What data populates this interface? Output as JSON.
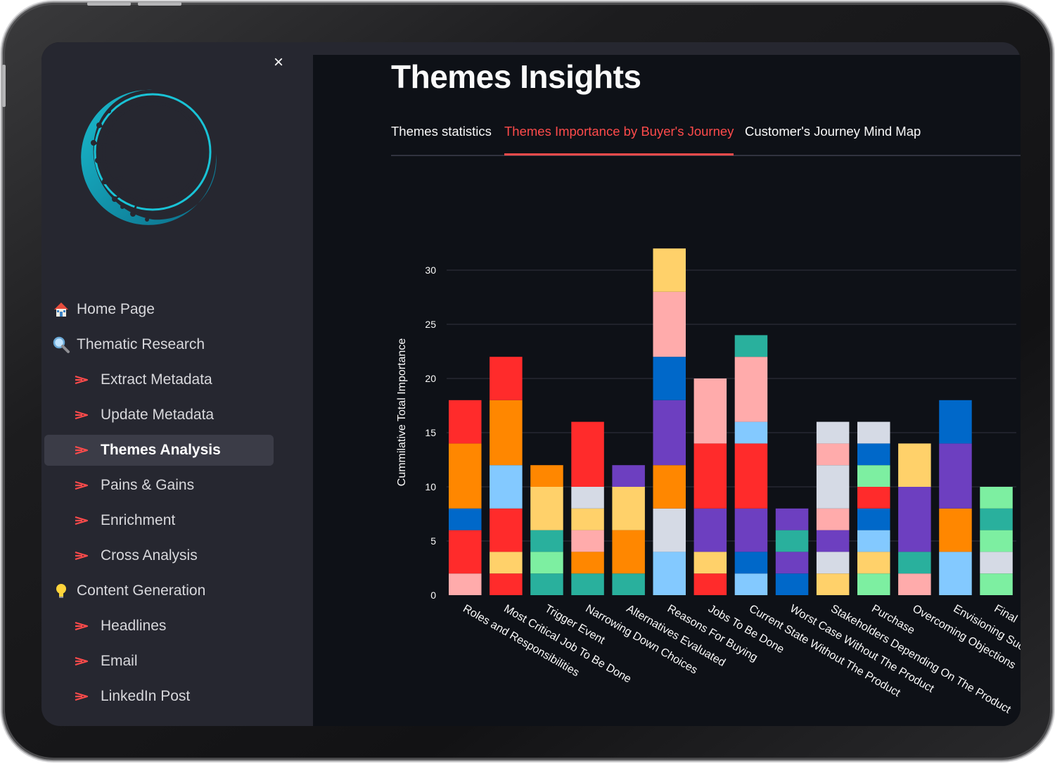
{
  "sidebar": {
    "close_label": "×",
    "items": [
      {
        "label": "Home Page",
        "icon": "house-icon",
        "level": 0,
        "active": false
      },
      {
        "label": "Thematic Research",
        "icon": "magnifier-icon",
        "level": 0,
        "active": false
      },
      {
        "label": "Extract Metadata",
        "icon": "arrow-icon",
        "level": 1,
        "active": false
      },
      {
        "label": "Update Metadata",
        "icon": "arrow-icon",
        "level": 1,
        "active": false
      },
      {
        "label": "Themes Analysis",
        "icon": "arrow-icon",
        "level": 1,
        "active": true
      },
      {
        "label": "Pains & Gains",
        "icon": "arrow-icon",
        "level": 1,
        "active": false
      },
      {
        "label": "Enrichment",
        "icon": "arrow-icon",
        "level": 1,
        "active": false
      },
      {
        "label": "Cross Analysis",
        "icon": "arrow-icon",
        "level": 1,
        "active": false
      },
      {
        "label": "Content Generation",
        "icon": "lightbulb-icon",
        "level": 0,
        "active": false
      },
      {
        "label": "Headlines",
        "icon": "arrow-icon",
        "level": 1,
        "active": false
      },
      {
        "label": "Email",
        "icon": "arrow-icon",
        "level": 1,
        "active": false
      },
      {
        "label": "LinkedIn Post",
        "icon": "arrow-icon",
        "level": 1,
        "active": false
      }
    ]
  },
  "main": {
    "title": "Themes Insights",
    "tabs": [
      {
        "label": "Themes statistics",
        "active": false
      },
      {
        "label": "Themes Importance by Buyer's Journey",
        "active": true
      },
      {
        "label": "Customer's Journey Mind Map",
        "active": false
      }
    ]
  },
  "colors": {
    "accent": "#ff4b4b",
    "sidebar_bg": "#262730",
    "main_bg": "#0e1117",
    "logo_cyan": "#19c3d6"
  },
  "chart_data": {
    "type": "bar",
    "stacked": true,
    "ylabel": "Cummilative Total Importance",
    "yticks": [
      0,
      5,
      10,
      15,
      20,
      25,
      30
    ],
    "ylim": [
      0,
      33
    ],
    "grid": true,
    "legend": "none",
    "categories": [
      "Roles and Responsibilities",
      "Most Critical Job To Be Done",
      "Trigger Event",
      "Narrowing Down Choices",
      "Alternatives Evaluated",
      "Reasons For Buying",
      "Jobs To Be Done",
      "Current State Without The Product",
      "Worst Case Without The Product",
      "Stakeholders Depending On The Product",
      "Purchase",
      "Overcoming Objections",
      "Envisioning Suc",
      "Final"
    ],
    "stacks": [
      [
        {
          "value": 2,
          "color": "#ffabab"
        },
        {
          "value": 4,
          "color": "#ff2b2b"
        },
        {
          "value": 2,
          "color": "#0068c9"
        },
        {
          "value": 6,
          "color": "#ff8700"
        },
        {
          "value": 4,
          "color": "#ff2b2b"
        }
      ],
      [
        {
          "value": 2,
          "color": "#ff2b2b"
        },
        {
          "value": 2,
          "color": "#ffd16a"
        },
        {
          "value": 4,
          "color": "#ff2b2b"
        },
        {
          "value": 4,
          "color": "#83c9ff"
        },
        {
          "value": 6,
          "color": "#ff8700"
        },
        {
          "value": 4,
          "color": "#ff2b2b"
        }
      ],
      [
        {
          "value": 2,
          "color": "#29b09d"
        },
        {
          "value": 2,
          "color": "#7defa1"
        },
        {
          "value": 2,
          "color": "#29b09d"
        },
        {
          "value": 4,
          "color": "#ffd16a"
        },
        {
          "value": 2,
          "color": "#ff8700"
        }
      ],
      [
        {
          "value": 2,
          "color": "#29b09d"
        },
        {
          "value": 2,
          "color": "#ff8700"
        },
        {
          "value": 2,
          "color": "#ffabab"
        },
        {
          "value": 2,
          "color": "#ffd16a"
        },
        {
          "value": 2,
          "color": "#d5dae5"
        },
        {
          "value": 6,
          "color": "#ff2b2b"
        }
      ],
      [
        {
          "value": 2,
          "color": "#29b09d"
        },
        {
          "value": 4,
          "color": "#ff8700"
        },
        {
          "value": 4,
          "color": "#ffd16a"
        },
        {
          "value": 2,
          "color": "#6d3fc0"
        }
      ],
      [
        {
          "value": 4,
          "color": "#83c9ff"
        },
        {
          "value": 4,
          "color": "#d5dae5"
        },
        {
          "value": 4,
          "color": "#ff8700"
        },
        {
          "value": 6,
          "color": "#6d3fc0"
        },
        {
          "value": 4,
          "color": "#0068c9"
        },
        {
          "value": 6,
          "color": "#ffabab"
        },
        {
          "value": 4,
          "color": "#ffd16a"
        }
      ],
      [
        {
          "value": 2,
          "color": "#ff2b2b"
        },
        {
          "value": 2,
          "color": "#ffd16a"
        },
        {
          "value": 4,
          "color": "#6d3fc0"
        },
        {
          "value": 6,
          "color": "#ff2b2b"
        },
        {
          "value": 6,
          "color": "#ffabab"
        }
      ],
      [
        {
          "value": 2,
          "color": "#83c9ff"
        },
        {
          "value": 2,
          "color": "#0068c9"
        },
        {
          "value": 4,
          "color": "#6d3fc0"
        },
        {
          "value": 6,
          "color": "#ff2b2b"
        },
        {
          "value": 2,
          "color": "#83c9ff"
        },
        {
          "value": 6,
          "color": "#ffabab"
        },
        {
          "value": 2,
          "color": "#29b09d"
        }
      ],
      [
        {
          "value": 2,
          "color": "#0068c9"
        },
        {
          "value": 2,
          "color": "#6d3fc0"
        },
        {
          "value": 2,
          "color": "#29b09d"
        },
        {
          "value": 2,
          "color": "#6d3fc0"
        }
      ],
      [
        {
          "value": 2,
          "color": "#ffd16a"
        },
        {
          "value": 2,
          "color": "#d5dae5"
        },
        {
          "value": 2,
          "color": "#6d3fc0"
        },
        {
          "value": 2,
          "color": "#ffabab"
        },
        {
          "value": 4,
          "color": "#d5dae5"
        },
        {
          "value": 2,
          "color": "#ffabab"
        },
        {
          "value": 2,
          "color": "#d5dae5"
        }
      ],
      [
        {
          "value": 2,
          "color": "#7defa1"
        },
        {
          "value": 2,
          "color": "#ffd16a"
        },
        {
          "value": 2,
          "color": "#83c9ff"
        },
        {
          "value": 2,
          "color": "#0068c9"
        },
        {
          "value": 2,
          "color": "#ff2b2b"
        },
        {
          "value": 2,
          "color": "#7defa1"
        },
        {
          "value": 2,
          "color": "#0068c9"
        },
        {
          "value": 2,
          "color": "#d5dae5"
        }
      ],
      [
        {
          "value": 2,
          "color": "#ffabab"
        },
        {
          "value": 2,
          "color": "#29b09d"
        },
        {
          "value": 6,
          "color": "#6d3fc0"
        },
        {
          "value": 4,
          "color": "#ffd16a"
        }
      ],
      [
        {
          "value": 4,
          "color": "#83c9ff"
        },
        {
          "value": 4,
          "color": "#ff8700"
        },
        {
          "value": 6,
          "color": "#6d3fc0"
        },
        {
          "value": 4,
          "color": "#0068c9"
        }
      ],
      [
        {
          "value": 2,
          "color": "#7defa1"
        },
        {
          "value": 2,
          "color": "#d5dae5"
        },
        {
          "value": 2,
          "color": "#7defa1"
        },
        {
          "value": 2,
          "color": "#29b09d"
        },
        {
          "value": 2,
          "color": "#7defa1"
        }
      ]
    ]
  }
}
